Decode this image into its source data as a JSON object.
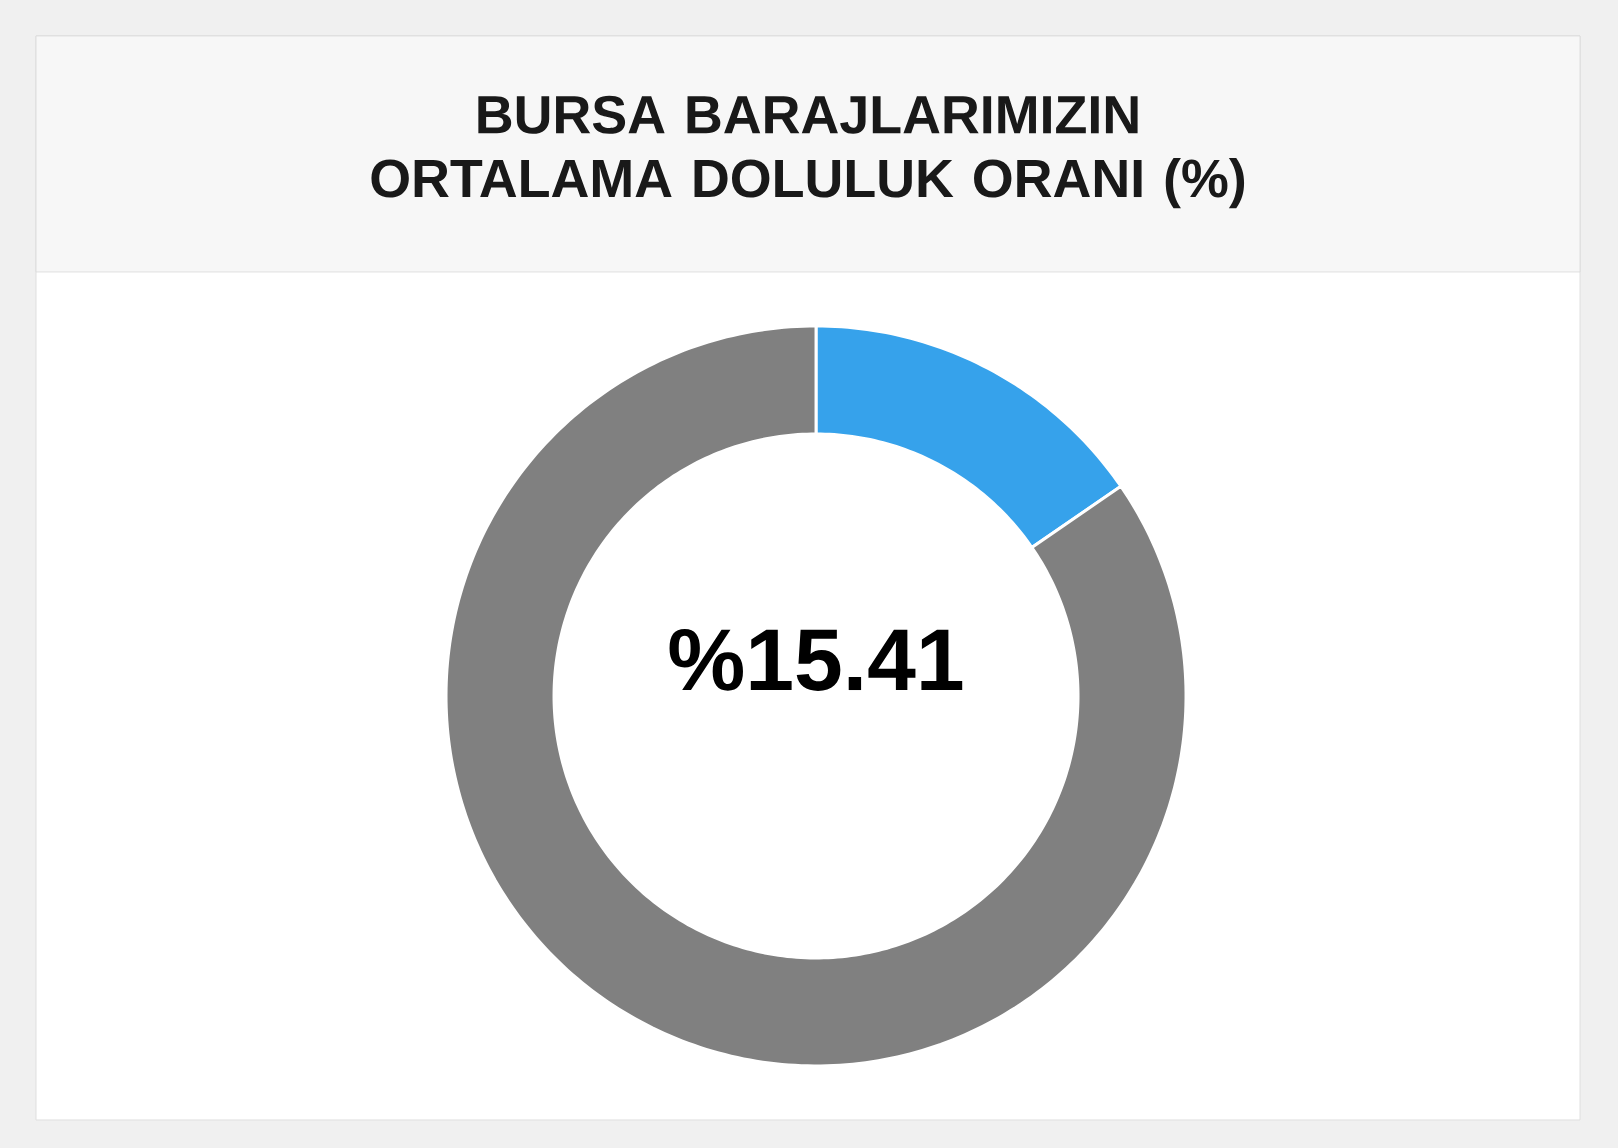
{
  "chart_data": {
    "type": "donut",
    "title": "BURSA BARAJLARIMIZIN ORTALAMA DOLULUK ORANI (%)",
    "categories": [
      null,
      null
    ],
    "values": [
      15.41,
      84.59
    ],
    "colors": [
      "#36a2eb",
      "#808080"
    ],
    "annotations": [
      "%15.41"
    ]
  }
}
